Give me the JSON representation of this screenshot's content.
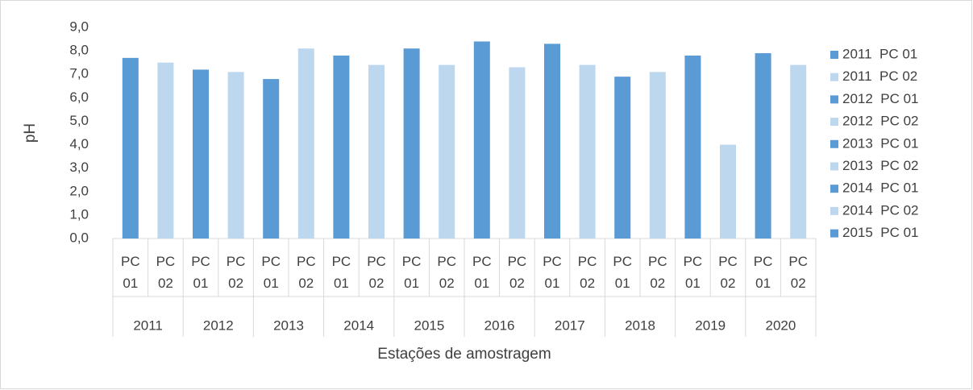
{
  "chart_data": {
    "type": "bar",
    "y_label": "pH",
    "x_label": "Estações de amostragem",
    "groups": [
      "2011",
      "2012",
      "2013",
      "2014",
      "2015",
      "2016",
      "2017",
      "2018",
      "2019",
      "2020"
    ],
    "categories": [
      "PC 01",
      "PC 02",
      "PC 01",
      "PC 02",
      "PC 01",
      "PC 02",
      "PC 01",
      "PC 02",
      "PC 01",
      "PC 02",
      "PC 01",
      "PC 02",
      "PC 01",
      "PC 02",
      "PC 01",
      "PC 02",
      "PC 01",
      "PC 02",
      "PC 01",
      "PC 02"
    ],
    "values": [
      7.7,
      7.5,
      7.2,
      7.1,
      6.8,
      8.1,
      7.8,
      7.4,
      8.1,
      7.4,
      8.4,
      7.3,
      8.3,
      7.4,
      6.9,
      7.1,
      7.8,
      4.0,
      7.9,
      7.4
    ],
    "colors": [
      "#5b9bd5",
      "#bdd7ee"
    ],
    "ylim": [
      0,
      9
    ],
    "yticks": [
      {
        "value": 0,
        "label": "0,0"
      },
      {
        "value": 1,
        "label": "1,0"
      },
      {
        "value": 2,
        "label": "2,0"
      },
      {
        "value": 3,
        "label": "3,0"
      },
      {
        "value": 4,
        "label": "4,0"
      },
      {
        "value": 5,
        "label": "5,0"
      },
      {
        "value": 6,
        "label": "6,0"
      },
      {
        "value": 7,
        "label": "7,0"
      },
      {
        "value": 8,
        "label": "8,0"
      },
      {
        "value": 9,
        "label": "9,0"
      }
    ],
    "legend": [
      {
        "name": "2011  PC 01",
        "color": "#5b9bd5"
      },
      {
        "name": "2011  PC 02",
        "color": "#bdd7ee"
      },
      {
        "name": "2012  PC 01",
        "color": "#5b9bd5"
      },
      {
        "name": "2012  PC 02",
        "color": "#bdd7ee"
      },
      {
        "name": "2013  PC 01",
        "color": "#5b9bd5"
      },
      {
        "name": "2013  PC 02",
        "color": "#bdd7ee"
      },
      {
        "name": "2014  PC 01",
        "color": "#5b9bd5"
      },
      {
        "name": "2014  PC 02",
        "color": "#bdd7ee"
      },
      {
        "name": "2015  PC 01",
        "color": "#5b9bd5"
      }
    ]
  }
}
